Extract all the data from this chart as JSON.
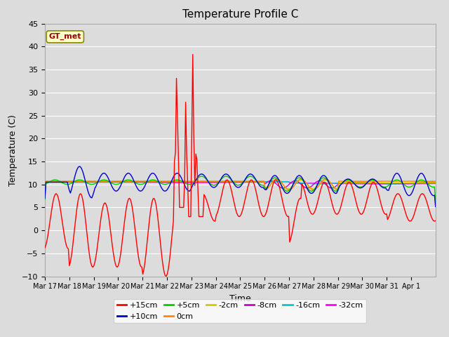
{
  "title": "Temperature Profile C",
  "xlabel": "Time",
  "ylabel": "Temperature (C)",
  "ylim": [
    -10,
    45
  ],
  "yticks": [
    -10,
    -5,
    0,
    5,
    10,
    15,
    20,
    25,
    30,
    35,
    40,
    45
  ],
  "background_color": "#dcdcdc",
  "plot_bg_color": "#dcdcdc",
  "series": [
    {
      "label": "+15cm",
      "color": "#ff0000",
      "lw": 1.0
    },
    {
      "label": "+10cm",
      "color": "#0000cc",
      "lw": 1.0
    },
    {
      "label": "+5cm",
      "color": "#00cc00",
      "lw": 1.0
    },
    {
      "label": "0cm",
      "color": "#ff8800",
      "lw": 1.0
    },
    {
      "label": "-2cm",
      "color": "#cccc00",
      "lw": 1.0
    },
    {
      "label": "-8cm",
      "color": "#cc00cc",
      "lw": 1.0
    },
    {
      "label": "-16cm",
      "color": "#00cccc",
      "lw": 1.0
    },
    {
      "label": "-32cm",
      "color": "#ff00ff",
      "lw": 1.0
    }
  ],
  "gt_met_box_color": "#ffffcc",
  "gt_met_box_edge": "#888800",
  "xtick_labels": [
    "Mar 17",
    "Mar 18",
    "Mar 19",
    "Mar 20",
    "Mar 21",
    "Mar 22",
    "Mar 23",
    "Mar 24",
    "Mar 25",
    "Mar 26",
    "Mar 27",
    "Mar 28",
    "Mar 29",
    "Mar 30",
    "Mar 31",
    "Apr 1"
  ]
}
